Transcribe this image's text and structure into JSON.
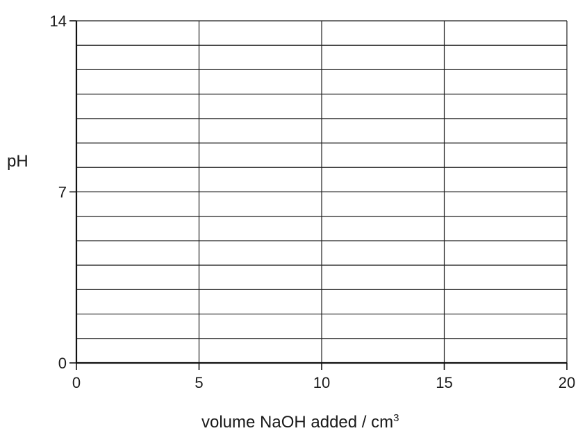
{
  "chart_data": {
    "type": "line",
    "title": "",
    "xlabel": "volume NaOH added / cm",
    "xlabel_superscript": "3",
    "ylabel": "pH",
    "xlim": [
      0,
      20
    ],
    "ylim": [
      0,
      14
    ],
    "x_ticks": [
      0,
      5,
      10,
      15,
      20
    ],
    "x_tick_labels": [
      "0",
      "5",
      "10",
      "15",
      "20"
    ],
    "y_ticks": [
      0,
      7,
      14
    ],
    "y_tick_labels": [
      "0",
      "7",
      "14"
    ],
    "x_grid_step": 5,
    "y_grid_step": 1,
    "grid": true,
    "series": []
  }
}
